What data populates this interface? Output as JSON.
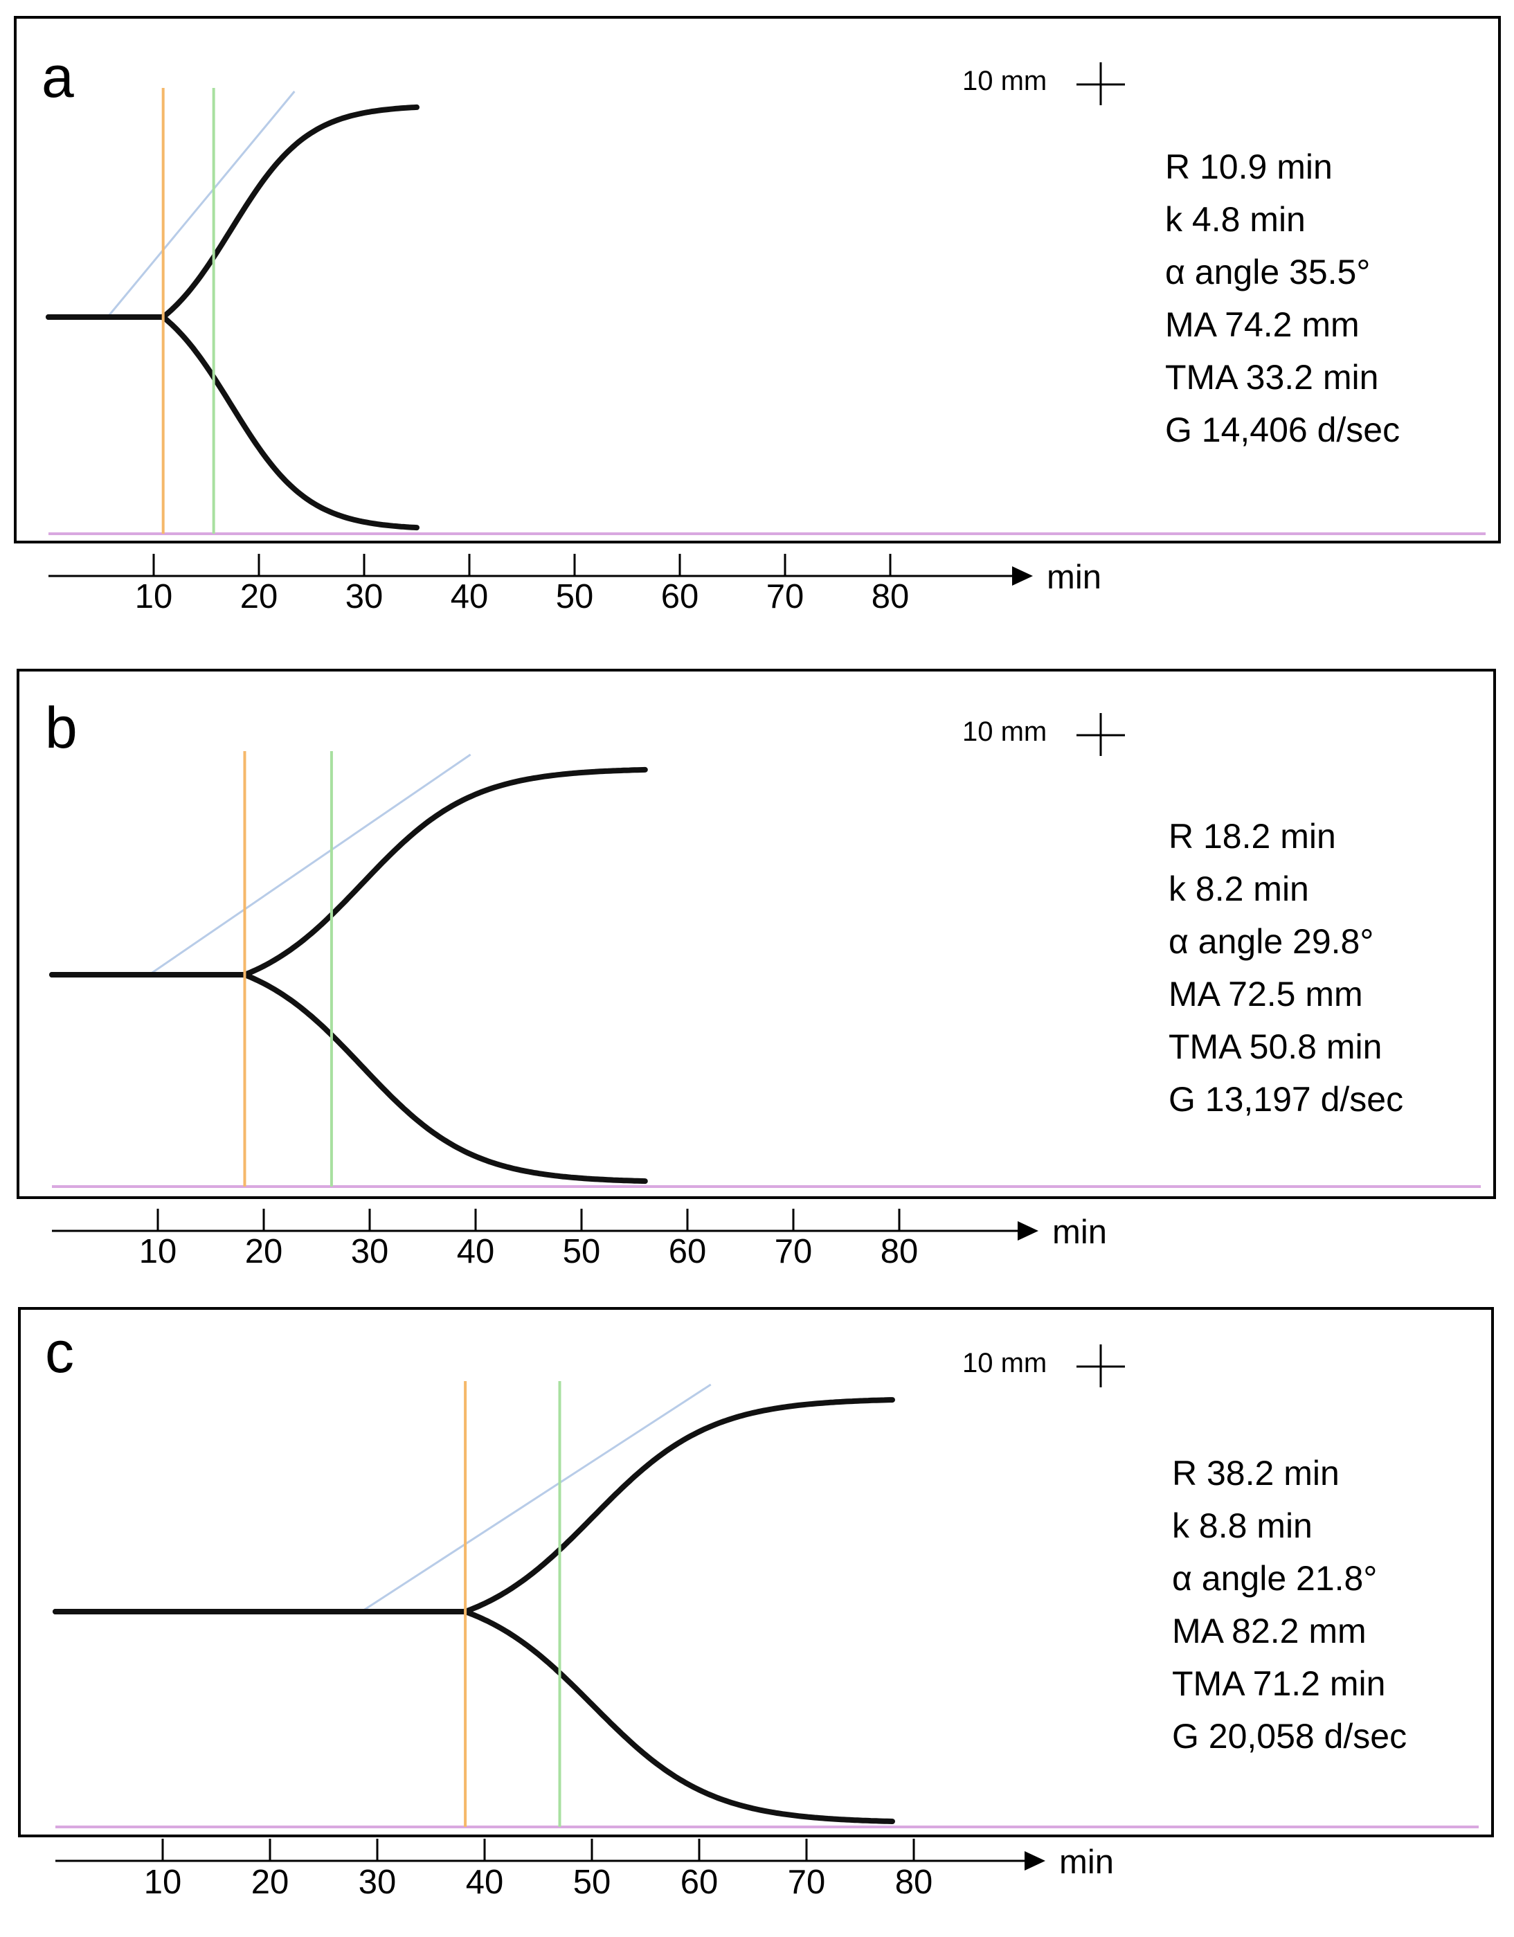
{
  "axis_unit": "min",
  "scale_label": "10 mm",
  "chart_data": [
    {
      "type": "line",
      "panel": "a",
      "xlabel": "min",
      "xlim": [
        0,
        90
      ],
      "x_ticks": [
        10,
        20,
        30,
        40,
        50,
        60,
        70,
        80
      ],
      "amplitude_unit": "mm",
      "reaction_time_line": 10.9,
      "coag_time_line": 15.7,
      "trace_end": 35,
      "stats": [
        "R 10.9 min",
        "k 4.8 min",
        "α  angle 35.5°",
        "MA 74.2 mm",
        "TMA 33.2 min",
        "G 14,406 d/sec"
      ],
      "params": {
        "R": 10.9,
        "k": 4.8,
        "alpha": 35.5,
        "MA": 74.2,
        "TMA": 33.2,
        "G": 14406
      }
    },
    {
      "type": "line",
      "panel": "b",
      "xlabel": "min",
      "xlim": [
        0,
        90
      ],
      "x_ticks": [
        10,
        20,
        30,
        40,
        50,
        60,
        70,
        80
      ],
      "amplitude_unit": "mm",
      "reaction_time_line": 18.2,
      "coag_time_line": 26.4,
      "trace_end": 56,
      "stats": [
        "R 18.2 min",
        "k 8.2 min",
        "α  angle 29.8°",
        "MA 72.5 mm",
        "TMA 50.8 min",
        "G 13,197 d/sec"
      ],
      "params": {
        "R": 18.2,
        "k": 8.2,
        "alpha": 29.8,
        "MA": 72.5,
        "TMA": 50.8,
        "G": 13197
      }
    },
    {
      "type": "line",
      "panel": "c",
      "xlabel": "min",
      "xlim": [
        0,
        90
      ],
      "x_ticks": [
        10,
        20,
        30,
        40,
        50,
        60,
        70,
        80
      ],
      "amplitude_unit": "mm",
      "reaction_time_line": 38.2,
      "coag_time_line": 47.0,
      "trace_end": 78,
      "stats": [
        "R 38.2 min",
        "k 8.8 min",
        "α  angle 21.8°",
        "MA 82.2 mm",
        "TMA 71.2 min",
        "G 20,058 d/sec"
      ],
      "params": {
        "R": 38.2,
        "k": 8.8,
        "alpha": 21.8,
        "MA": 82.2,
        "TMA": 71.2,
        "G": 20058
      }
    }
  ],
  "colors": {
    "trace": "#111111",
    "r_line": "#f5b86a",
    "k_line": "#a8e0a0",
    "tangent": "#b8cce8",
    "baseline": "#d9a8e0"
  }
}
